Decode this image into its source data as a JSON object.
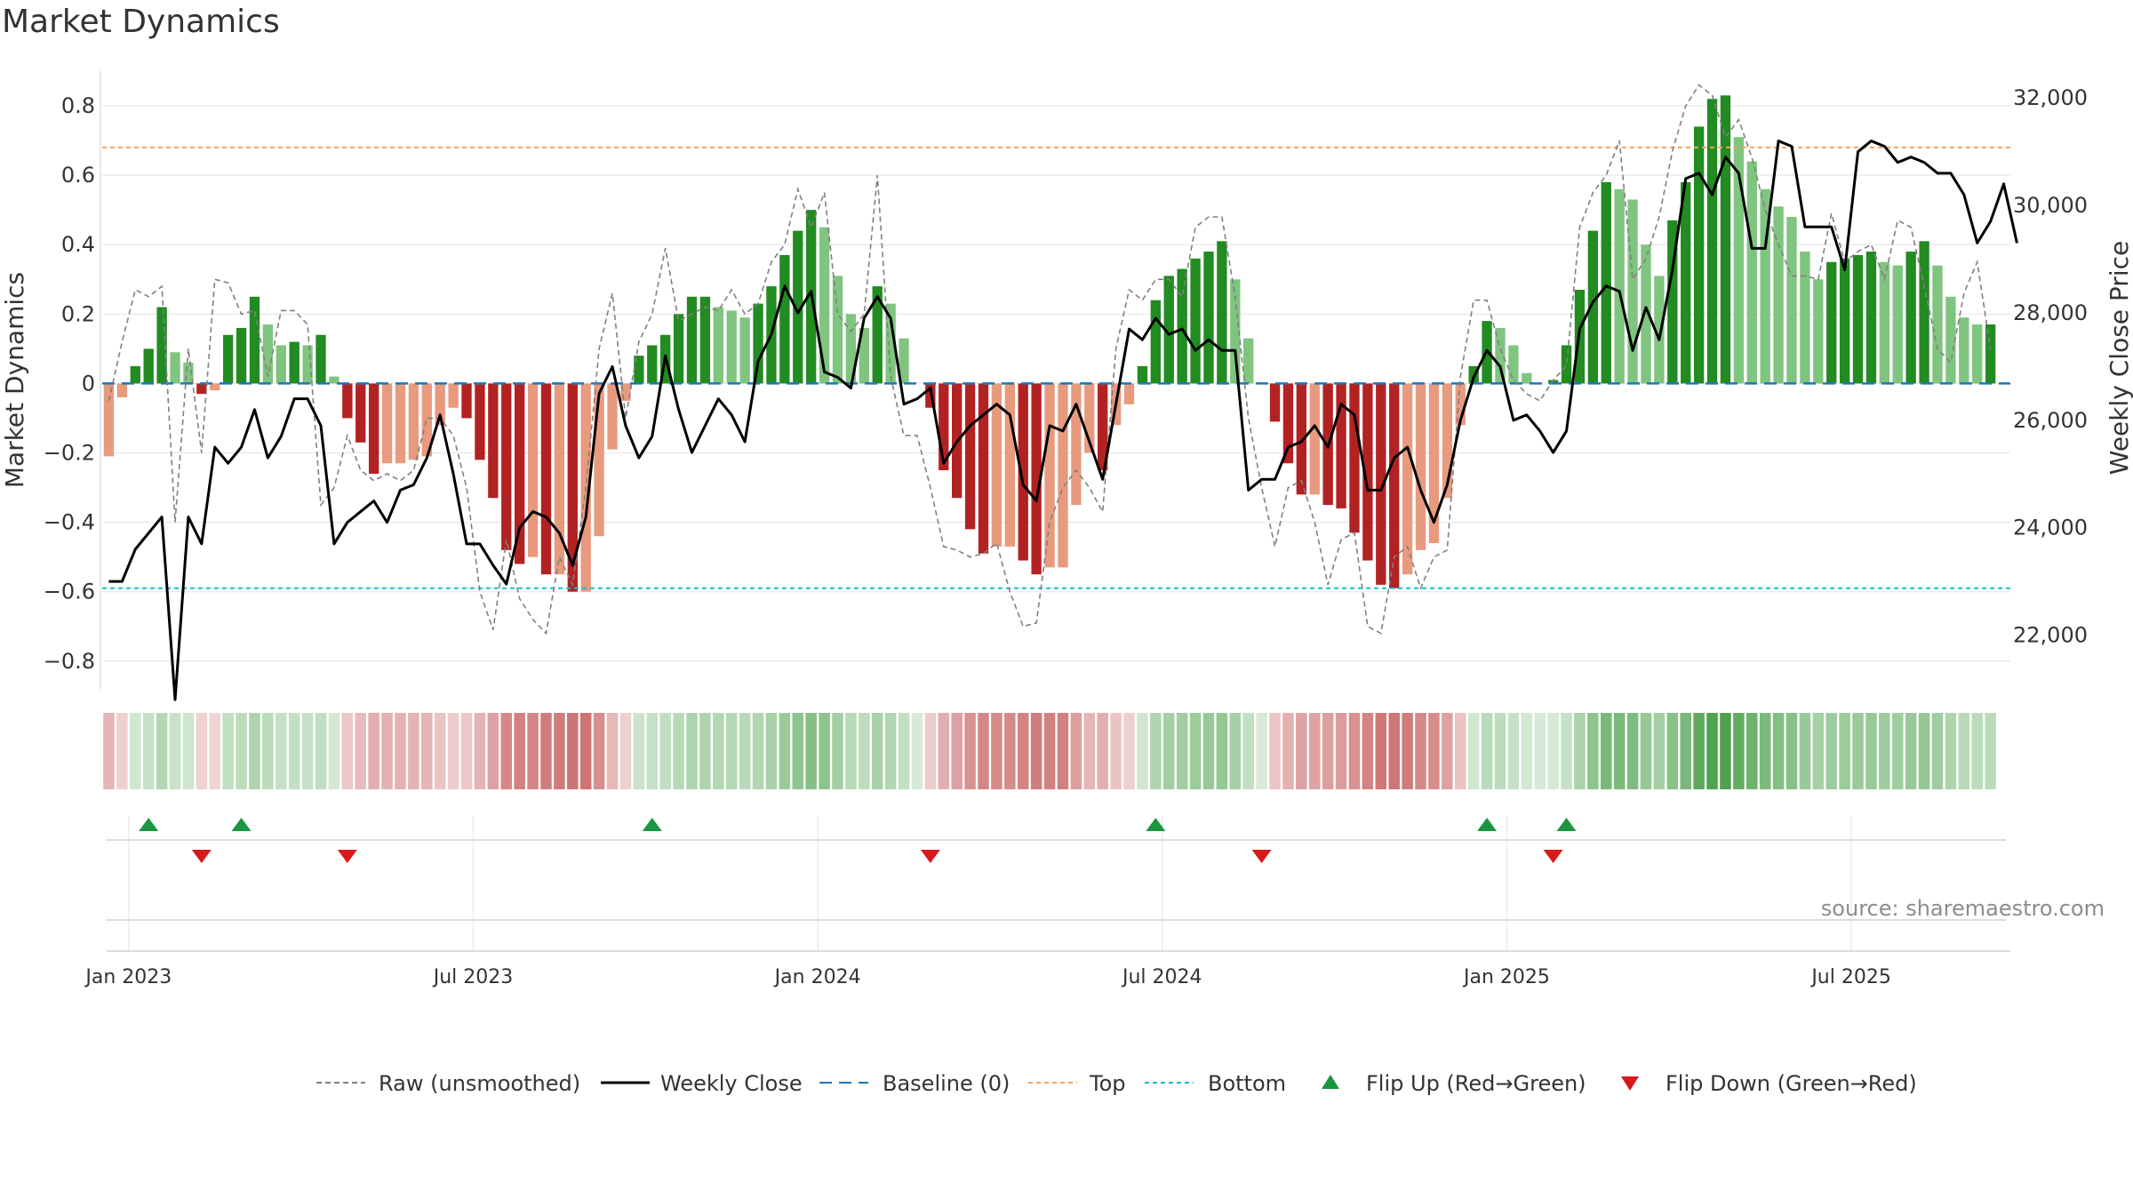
{
  "title": "Market Dynamics",
  "source": "source: sharemaestro.com",
  "chart_data": {
    "type": "bar",
    "ylabel_left": "Market Dynamics",
    "ylabel_right": "Weekly Close Price",
    "ylim_left": [
      -0.88,
      0.9
    ],
    "ylim_right": [
      21000,
      32500
    ],
    "yticks_left": [
      {
        "v": 0.8,
        "label": "0.8"
      },
      {
        "v": 0.6,
        "label": "0.6"
      },
      {
        "v": 0.4,
        "label": "0.4"
      },
      {
        "v": 0.2,
        "label": "0.2"
      },
      {
        "v": 0,
        "label": "0"
      },
      {
        "v": -0.2,
        "label": "−0.2"
      },
      {
        "v": -0.4,
        "label": "−0.4"
      },
      {
        "v": -0.6,
        "label": "−0.6"
      },
      {
        "v": -0.8,
        "label": "−0.8"
      }
    ],
    "yticks_right": [
      {
        "v": 32000,
        "label": "32,000"
      },
      {
        "v": 30000,
        "label": "30,000"
      },
      {
        "v": 28000,
        "label": "28,000"
      },
      {
        "v": 26000,
        "label": "26,000"
      },
      {
        "v": 24000,
        "label": "24,000"
      },
      {
        "v": 22000,
        "label": "22,000"
      }
    ],
    "xticks": [
      {
        "i": 1.5,
        "label": "Jan 2023"
      },
      {
        "i": 27.5,
        "label": "Jul 2023"
      },
      {
        "i": 53.5,
        "label": "Jan 2024"
      },
      {
        "i": 79.5,
        "label": "Jul 2024"
      },
      {
        "i": 105.5,
        "label": "Jan 2025"
      },
      {
        "i": 131.5,
        "label": "Jul 2025"
      }
    ],
    "n_weeks": 144,
    "top_level": 0.68,
    "bottom_level": -0.59,
    "baseline": 0,
    "colors": {
      "strong_green": "#228b22",
      "light_green": "#7fc47f",
      "strong_red": "#b22222",
      "light_red": "#e89a7e",
      "raw": "#808080",
      "close": "#000000",
      "baseline": "#1f77b4",
      "top": "#f4a261",
      "bottom": "#17becf",
      "flip_up": "#1a9641",
      "flip_down": "#d7191c"
    },
    "series": [
      {
        "name": "Market Dynamics",
        "values": [
          -0.21,
          -0.04,
          0.05,
          0.1,
          0.22,
          0.09,
          0.06,
          -0.03,
          -0.02,
          0.14,
          0.16,
          0.25,
          0.17,
          0.11,
          0.12,
          0.11,
          0.14,
          0.02,
          -0.1,
          -0.17,
          -0.26,
          -0.23,
          -0.23,
          -0.22,
          -0.21,
          -0.12,
          -0.07,
          -0.1,
          -0.22,
          -0.33,
          -0.48,
          -0.52,
          -0.5,
          -0.55,
          -0.55,
          -0.6,
          -0.6,
          -0.44,
          -0.19,
          -0.05,
          0.08,
          0.11,
          0.14,
          0.2,
          0.25,
          0.25,
          0.22,
          0.21,
          0.19,
          0.23,
          0.28,
          0.37,
          0.44,
          0.5,
          0.45,
          0.31,
          0.2,
          0.16,
          0.28,
          0.23,
          0.13,
          0,
          -0.07,
          -0.25,
          -0.33,
          -0.42,
          -0.49,
          -0.47,
          -0.47,
          -0.51,
          -0.55,
          -0.53,
          -0.53,
          -0.35,
          -0.2,
          -0.25,
          -0.12,
          -0.06,
          0.05,
          0.24,
          0.31,
          0.33,
          0.36,
          0.38,
          0.41,
          0.3,
          0.13,
          0,
          -0.11,
          -0.23,
          -0.32,
          -0.32,
          -0.35,
          -0.36,
          -0.43,
          -0.51,
          -0.58,
          -0.59,
          -0.55,
          -0.48,
          -0.46,
          -0.33,
          -0.12,
          0.05,
          0.18,
          0.16,
          0.11,
          0.03,
          0,
          0.01,
          0.11,
          0.27,
          0.44,
          0.58,
          0.56,
          0.53,
          0.4,
          0.31,
          0.47,
          0.58,
          0.74,
          0.82,
          0.83,
          0.71,
          0.64,
          0.56,
          0.51,
          0.48,
          0.38,
          0.3,
          0.35,
          0.36,
          0.37,
          0.38,
          0.35,
          0.34,
          0.38,
          0.41,
          0.34,
          0.25,
          0.19,
          0.17,
          0.17
        ]
      },
      {
        "name": "Raw (unsmoothed)",
        "values": [
          -0.05,
          0.12,
          0.27,
          0.25,
          0.28,
          -0.4,
          0.1,
          -0.2,
          0.3,
          0.29,
          0.2,
          0.21,
          0.02,
          0.21,
          0.21,
          0.17,
          -0.35,
          -0.3,
          -0.15,
          -0.25,
          -0.28,
          -0.26,
          -0.28,
          -0.25,
          -0.1,
          -0.1,
          -0.15,
          -0.3,
          -0.6,
          -0.71,
          -0.45,
          -0.62,
          -0.68,
          -0.72,
          -0.5,
          -0.58,
          -0.3,
          0.1,
          0.26,
          -0.1,
          0.12,
          0.2,
          0.39,
          0.18,
          0.2,
          0.22,
          0.21,
          0.27,
          0.2,
          0.23,
          0.35,
          0.4,
          0.56,
          0.45,
          0.55,
          0.2,
          0.15,
          0.2,
          0.6,
          0.02,
          -0.15,
          -0.15,
          -0.3,
          -0.47,
          -0.48,
          -0.5,
          -0.49,
          -0.46,
          -0.6,
          -0.7,
          -0.69,
          -0.4,
          -0.3,
          -0.25,
          -0.3,
          -0.37,
          0.1,
          0.27,
          0.24,
          0.3,
          0.3,
          0.25,
          0.45,
          0.48,
          0.48,
          0.25,
          -0.1,
          -0.3,
          -0.47,
          -0.3,
          -0.28,
          -0.4,
          -0.58,
          -0.45,
          -0.43,
          -0.7,
          -0.72,
          -0.5,
          -0.47,
          -0.59,
          -0.5,
          -0.48,
          0.02,
          0.24,
          0.24,
          0.1,
          0.01,
          -0.03,
          -0.05,
          0.01,
          0.05,
          0.45,
          0.55,
          0.6,
          0.7,
          0.3,
          0.36,
          0.48,
          0.67,
          0.8,
          0.86,
          0.83,
          0.71,
          0.76,
          0.65,
          0.5,
          0.4,
          0.31,
          0.31,
          0.3,
          0.49,
          0.35,
          0.38,
          0.4,
          0.3,
          0.47,
          0.45,
          0.28,
          0.1,
          0.06,
          0.26,
          0.35,
          0.1
        ]
      },
      {
        "name": "Weekly Close",
        "values": [
          23000,
          23000,
          23600,
          23900,
          24200,
          20800,
          24200,
          23700,
          25500,
          25200,
          25500,
          26200,
          25300,
          25700,
          26400,
          26400,
          25900,
          23700,
          24100,
          24300,
          24500,
          24100,
          24700,
          24800,
          25300,
          26100,
          25000,
          23700,
          23700,
          23300,
          22950,
          24000,
          24300,
          24200,
          23900,
          23300,
          24200,
          26500,
          27000,
          25900,
          25300,
          25700,
          27200,
          26200,
          25400,
          25900,
          26400,
          26100,
          25600,
          27100,
          27600,
          28500,
          28000,
          28400,
          26900,
          26800,
          26600,
          27900,
          28300,
          27900,
          26300,
          26400,
          26600,
          25200,
          25600,
          25900,
          26100,
          26300,
          26100,
          24800,
          24500,
          25900,
          25800,
          26300,
          25600,
          24900,
          26300,
          27700,
          27500,
          27900,
          27600,
          27700,
          27300,
          27500,
          27300,
          27300,
          24700,
          24900,
          24900,
          25500,
          25600,
          25900,
          25500,
          26300,
          26100,
          24700,
          24700,
          25300,
          25500,
          24700,
          24100,
          24800,
          26000,
          26800,
          27300,
          27000,
          26000,
          26100,
          25800,
          25400,
          25800,
          27700,
          28200,
          28500,
          28400,
          27300,
          28100,
          27500,
          28800,
          30500,
          30600,
          30200,
          30900,
          30600,
          29200,
          29200,
          31200,
          31100,
          29600,
          29600,
          29600,
          28800,
          31000,
          31200,
          31100,
          30800,
          30900,
          30800,
          30600,
          30600,
          30200,
          29300,
          29700,
          30400,
          29300
        ]
      }
    ],
    "flips": [
      {
        "i": 3,
        "dir": "up"
      },
      {
        "i": 10,
        "dir": "up"
      },
      {
        "i": 41,
        "dir": "up"
      },
      {
        "i": 79,
        "dir": "up"
      },
      {
        "i": 104,
        "dir": "up"
      },
      {
        "i": 110,
        "dir": "up"
      },
      {
        "i": 7,
        "dir": "down"
      },
      {
        "i": 18,
        "dir": "down"
      },
      {
        "i": 62,
        "dir": "down"
      },
      {
        "i": 87,
        "dir": "down"
      },
      {
        "i": 109,
        "dir": "down"
      }
    ],
    "legend": {
      "position": "bottom-center",
      "entries": [
        {
          "key": "raw",
          "label": "Raw (unsmoothed)"
        },
        {
          "key": "close",
          "label": "Weekly Close"
        },
        {
          "key": "baseline",
          "label": "Baseline (0)"
        },
        {
          "key": "top",
          "label": "Top"
        },
        {
          "key": "bottom",
          "label": "Bottom"
        },
        {
          "key": "flip_up",
          "label": "Flip Up (Red→Green)"
        },
        {
          "key": "flip_down",
          "label": "Flip Down (Green→Red)"
        }
      ]
    }
  }
}
